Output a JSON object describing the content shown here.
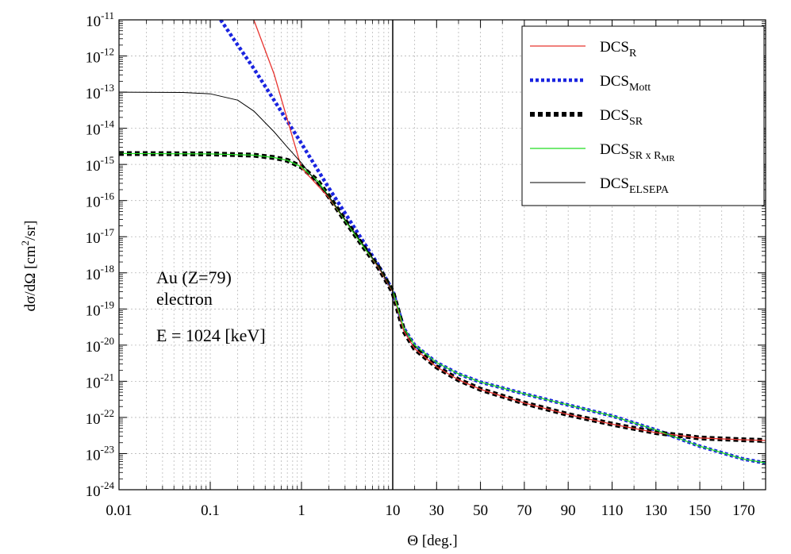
{
  "chart_data": {
    "type": "line",
    "title": "",
    "xlabel": "Θ [deg.]",
    "ylabel_parts": [
      "dσ/dΩ [cm",
      "2",
      "/sr]"
    ],
    "x_axis": {
      "segments": [
        {
          "scale": "log",
          "range": [
            0.01,
            10
          ],
          "ticks": [
            0.01,
            0.1,
            1,
            10
          ],
          "tick_labels": [
            "0.01",
            "0.1",
            "1",
            "10"
          ]
        },
        {
          "scale": "linear",
          "range": [
            10,
            180
          ],
          "ticks": [
            10,
            30,
            50,
            70,
            90,
            110,
            130,
            150,
            170
          ],
          "tick_labels": [
            "10",
            "30",
            "50",
            "70",
            "90",
            "110",
            "130",
            "150",
            "170"
          ]
        }
      ]
    },
    "y_axis": {
      "scale": "log",
      "range": [
        1e-24,
        1e-11
      ],
      "tick_exponents": [
        -24,
        -23,
        -22,
        -21,
        -20,
        -19,
        -18,
        -17,
        -16,
        -15,
        -14,
        -13,
        -12,
        -11
      ],
      "tick_base": "10"
    },
    "grid": true,
    "legend_position": "top-right",
    "annotations": [
      "Au (Z=79)",
      "electron",
      "E = 1024 [keV]"
    ],
    "series": [
      {
        "name": "DCS_R",
        "label_main": "DCS",
        "label_sub": "R",
        "label_sub2": "",
        "color": "#e8342f",
        "style": "solid",
        "points": [
          [
            0.3,
            1e-11
          ],
          [
            0.5,
            3.2e-13
          ],
          [
            1,
            8e-16
          ],
          [
            2,
            1.2e-16
          ],
          [
            3,
            2.8e-17
          ],
          [
            5,
            4.5e-18
          ],
          [
            7,
            1.4e-18
          ],
          [
            10,
            3e-19
          ],
          [
            15,
            2.5e-20
          ],
          [
            20,
            8e-21
          ],
          [
            30,
            2.5e-21
          ],
          [
            40,
            1.1e-21
          ],
          [
            50,
            6e-22
          ],
          [
            70,
            2.5e-22
          ],
          [
            90,
            1.2e-22
          ],
          [
            110,
            6.5e-23
          ],
          [
            130,
            3.8e-23
          ],
          [
            150,
            2.7e-23
          ],
          [
            170,
            2.4e-23
          ],
          [
            180,
            2.3e-23
          ]
        ]
      },
      {
        "name": "DCS_Mott",
        "label_main": "DCS",
        "label_sub": "Mott",
        "label_sub2": "",
        "color": "#1a24e0",
        "style": "dotted",
        "points": [
          [
            0.13,
            1e-11
          ],
          [
            0.2,
            2e-12
          ],
          [
            0.3,
            4.5e-13
          ],
          [
            0.5,
            6e-14
          ],
          [
            1,
            3.8e-15
          ],
          [
            2,
            2.2e-16
          ],
          [
            3,
            4.5e-17
          ],
          [
            5,
            6e-18
          ],
          [
            7,
            1.6e-18
          ],
          [
            10,
            3.2e-19
          ],
          [
            15,
            3e-20
          ],
          [
            20,
            1e-20
          ],
          [
            30,
            3.3e-21
          ],
          [
            40,
            1.6e-21
          ],
          [
            50,
            9.5e-22
          ],
          [
            70,
            4.5e-22
          ],
          [
            90,
            2.2e-22
          ],
          [
            110,
            1.1e-22
          ],
          [
            130,
            4.5e-23
          ],
          [
            150,
            1.6e-23
          ],
          [
            170,
            7e-24
          ],
          [
            180,
            5.5e-24
          ]
        ]
      },
      {
        "name": "DCS_SR",
        "label_main": "DCS",
        "label_sub": "SR",
        "label_sub2": "",
        "color": "#000000",
        "style": "dotted-thick",
        "points": [
          [
            0.01,
            2e-15
          ],
          [
            0.1,
            1.95e-15
          ],
          [
            0.3,
            1.8e-15
          ],
          [
            0.5,
            1.55e-15
          ],
          [
            0.7,
            1.3e-15
          ],
          [
            1,
            8.5e-16
          ],
          [
            1.5,
            3.5e-16
          ],
          [
            2,
            1.3e-16
          ],
          [
            3,
            2.8e-17
          ],
          [
            5,
            4.5e-18
          ],
          [
            7,
            1.4e-18
          ],
          [
            10,
            3e-19
          ],
          [
            15,
            2.5e-20
          ],
          [
            20,
            8e-21
          ],
          [
            30,
            2.5e-21
          ],
          [
            40,
            1.1e-21
          ],
          [
            50,
            6e-22
          ],
          [
            70,
            2.5e-22
          ],
          [
            90,
            1.2e-22
          ],
          [
            110,
            6.5e-23
          ],
          [
            130,
            3.8e-23
          ],
          [
            150,
            2.7e-23
          ],
          [
            170,
            2.4e-23
          ],
          [
            180,
            2.3e-23
          ]
        ]
      },
      {
        "name": "DCS_SR x R_MR",
        "label_main": "DCS",
        "label_sub": "SR x R",
        "label_sub2": "MR",
        "color": "#22dd22",
        "style": "solid",
        "points": [
          [
            0.01,
            2e-15
          ],
          [
            0.1,
            1.95e-15
          ],
          [
            0.3,
            1.8e-15
          ],
          [
            0.5,
            1.55e-15
          ],
          [
            0.7,
            1.3e-15
          ],
          [
            1,
            8.5e-16
          ],
          [
            1.5,
            3.5e-16
          ],
          [
            2,
            1.3e-16
          ],
          [
            3,
            2.8e-17
          ],
          [
            5,
            4.5e-18
          ],
          [
            7,
            1.5e-18
          ],
          [
            10,
            3.2e-19
          ],
          [
            15,
            3e-20
          ],
          [
            20,
            1e-20
          ],
          [
            30,
            3.3e-21
          ],
          [
            40,
            1.6e-21
          ],
          [
            50,
            9.5e-22
          ],
          [
            70,
            4.5e-22
          ],
          [
            90,
            2.2e-22
          ],
          [
            110,
            1.1e-22
          ],
          [
            130,
            4.5e-23
          ],
          [
            150,
            1.6e-23
          ],
          [
            170,
            7e-24
          ],
          [
            180,
            5.5e-24
          ]
        ]
      },
      {
        "name": "DCS_ELSEPA",
        "label_main": "DCS",
        "label_sub": "ELSEPA",
        "label_sub2": "",
        "color": "#000000",
        "style": "solid-thin",
        "points": [
          [
            0.01,
            1e-13
          ],
          [
            0.05,
            9.8e-14
          ],
          [
            0.1,
            9e-14
          ],
          [
            0.2,
            6e-14
          ],
          [
            0.3,
            3e-14
          ],
          [
            0.5,
            8e-15
          ],
          [
            0.7,
            3e-15
          ],
          [
            1,
            1.1e-15
          ],
          [
            1.5,
            3e-16
          ],
          [
            2,
            1.3e-16
          ],
          [
            3,
            3e-17
          ],
          [
            5,
            5e-18
          ],
          [
            7,
            1.5e-18
          ],
          [
            10,
            3.2e-19
          ]
        ]
      }
    ]
  }
}
